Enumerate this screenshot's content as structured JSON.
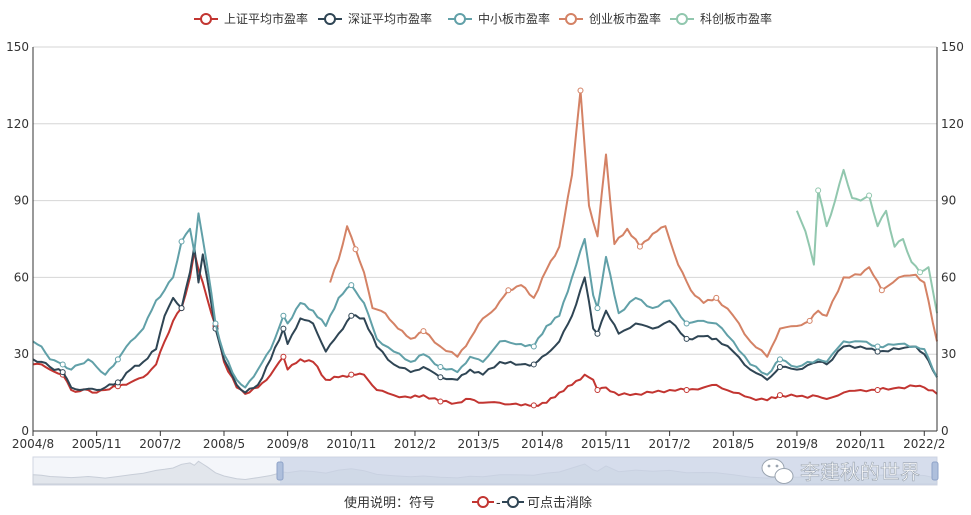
{
  "chart_data": {
    "type": "line",
    "title": "",
    "xlabel": "",
    "ylabel": "",
    "ylim": [
      0,
      150
    ],
    "y_ticks": [
      0,
      30,
      60,
      90,
      120,
      150
    ],
    "x_ticks": [
      "2004/8",
      "2005/11",
      "2007/2",
      "2008/5",
      "2009/8",
      "2010/11",
      "2012/2",
      "2013/5",
      "2014/8",
      "2015/11",
      "2017/2",
      "2018/5",
      "2019/8",
      "2020/11",
      "2022/2"
    ],
    "x_range": [
      "2004-08",
      "2022-05"
    ],
    "grid": "horizontal",
    "legend_position": "top-center",
    "series": [
      {
        "name": "上证平均市盈率",
        "color": "#c23531",
        "points": [
          [
            "2004-08",
            26
          ],
          [
            "2004-10",
            26
          ],
          [
            "2004-12",
            24
          ],
          [
            "2005-03",
            22
          ],
          [
            "2005-05",
            16
          ],
          [
            "2005-07",
            15.5
          ],
          [
            "2005-09",
            16
          ],
          [
            "2005-11",
            15
          ],
          [
            "2006-01",
            16
          ],
          [
            "2006-04",
            17.5
          ],
          [
            "2006-07",
            19
          ],
          [
            "2006-10",
            21
          ],
          [
            "2007-01",
            26
          ],
          [
            "2007-03",
            35
          ],
          [
            "2007-05",
            43
          ],
          [
            "2007-07",
            48
          ],
          [
            "2007-09",
            60
          ],
          [
            "2007-10",
            70
          ],
          [
            "2007-11",
            63
          ],
          [
            "2007-12",
            58
          ],
          [
            "2008-01",
            52
          ],
          [
            "2008-03",
            41
          ],
          [
            "2008-05",
            27
          ],
          [
            "2008-08",
            17
          ],
          [
            "2008-10",
            14.5
          ],
          [
            "2009-01",
            17
          ],
          [
            "2009-04",
            22
          ],
          [
            "2009-07",
            29
          ],
          [
            "2009-08",
            24
          ],
          [
            "2009-11",
            28
          ],
          [
            "2010-02",
            27
          ],
          [
            "2010-05",
            20
          ],
          [
            "2010-08",
            21
          ],
          [
            "2010-11",
            22
          ],
          [
            "2011-02",
            22
          ],
          [
            "2011-05",
            16
          ],
          [
            "2011-09",
            14
          ],
          [
            "2012-01",
            13
          ],
          [
            "2012-04",
            14
          ],
          [
            "2012-08",
            11.5
          ],
          [
            "2012-12",
            11
          ],
          [
            "2013-03",
            12.5
          ],
          [
            "2013-06",
            11
          ],
          [
            "2013-10",
            11
          ],
          [
            "2014-03",
            10
          ],
          [
            "2014-06",
            10
          ],
          [
            "2014-09",
            11
          ],
          [
            "2014-12",
            15
          ],
          [
            "2015-03",
            18
          ],
          [
            "2015-06",
            22
          ],
          [
            "2015-08",
            20
          ],
          [
            "2015-09",
            16
          ],
          [
            "2015-11",
            17
          ],
          [
            "2016-02",
            14
          ],
          [
            "2016-06",
            14.5
          ],
          [
            "2016-10",
            15
          ],
          [
            "2017-02",
            16
          ],
          [
            "2017-06",
            16
          ],
          [
            "2017-10",
            17
          ],
          [
            "2018-01",
            18
          ],
          [
            "2018-05",
            15
          ],
          [
            "2018-09",
            13
          ],
          [
            "2019-01",
            12
          ],
          [
            "2019-04",
            14
          ],
          [
            "2019-08",
            13.5
          ],
          [
            "2020-01",
            13.5
          ],
          [
            "2020-03",
            12.5
          ],
          [
            "2020-07",
            15
          ],
          [
            "2020-11",
            16
          ],
          [
            "2021-03",
            16
          ],
          [
            "2021-08",
            17
          ],
          [
            "2021-12",
            17.5
          ],
          [
            "2022-02",
            17
          ],
          [
            "2022-05",
            14.5
          ]
        ]
      },
      {
        "name": "深证平均市盈率",
        "color": "#2f4554",
        "points": [
          [
            "2004-08",
            28
          ],
          [
            "2004-10",
            27
          ],
          [
            "2004-12",
            25
          ],
          [
            "2005-03",
            23
          ],
          [
            "2005-05",
            17
          ],
          [
            "2005-07",
            16
          ],
          [
            "2005-09",
            16.5
          ],
          [
            "2005-11",
            16
          ],
          [
            "2006-01",
            17
          ],
          [
            "2006-04",
            19
          ],
          [
            "2006-07",
            24
          ],
          [
            "2006-10",
            27
          ],
          [
            "2007-01",
            32
          ],
          [
            "2007-03",
            45
          ],
          [
            "2007-05",
            52
          ],
          [
            "2007-07",
            48
          ],
          [
            "2007-09",
            62
          ],
          [
            "2007-10",
            72
          ],
          [
            "2007-11",
            58
          ],
          [
            "2007-12",
            69
          ],
          [
            "2008-01",
            60
          ],
          [
            "2008-03",
            40
          ],
          [
            "2008-05",
            28
          ],
          [
            "2008-08",
            18
          ],
          [
            "2008-10",
            15
          ],
          [
            "2009-01",
            18
          ],
          [
            "2009-04",
            28
          ],
          [
            "2009-07",
            40
          ],
          [
            "2009-08",
            34
          ],
          [
            "2009-11",
            44
          ],
          [
            "2010-02",
            42
          ],
          [
            "2010-05",
            31
          ],
          [
            "2010-08",
            38
          ],
          [
            "2010-11",
            45
          ],
          [
            "2011-02",
            44
          ],
          [
            "2011-05",
            33
          ],
          [
            "2011-09",
            26
          ],
          [
            "2012-01",
            23
          ],
          [
            "2012-04",
            25
          ],
          [
            "2012-08",
            21
          ],
          [
            "2012-12",
            20
          ],
          [
            "2013-03",
            24
          ],
          [
            "2013-06",
            22
          ],
          [
            "2013-10",
            27
          ],
          [
            "2014-03",
            26
          ],
          [
            "2014-06",
            26
          ],
          [
            "2014-09",
            30
          ],
          [
            "2014-12",
            35
          ],
          [
            "2015-03",
            45
          ],
          [
            "2015-06",
            60
          ],
          [
            "2015-08",
            40
          ],
          [
            "2015-09",
            38
          ],
          [
            "2015-11",
            47
          ],
          [
            "2016-02",
            38
          ],
          [
            "2016-06",
            42
          ],
          [
            "2016-10",
            40
          ],
          [
            "2017-02",
            43
          ],
          [
            "2017-06",
            36
          ],
          [
            "2017-10",
            37
          ],
          [
            "2018-01",
            36
          ],
          [
            "2018-05",
            31
          ],
          [
            "2018-09",
            24
          ],
          [
            "2019-01",
            20
          ],
          [
            "2019-04",
            25
          ],
          [
            "2019-08",
            24
          ],
          [
            "2020-01",
            27
          ],
          [
            "2020-03",
            26
          ],
          [
            "2020-07",
            33
          ],
          [
            "2020-11",
            33
          ],
          [
            "2021-03",
            31
          ],
          [
            "2021-08",
            32
          ],
          [
            "2021-12",
            33
          ],
          [
            "2022-02",
            30
          ],
          [
            "2022-05",
            21
          ]
        ]
      },
      {
        "name": "中小板市盈率",
        "color": "#61a0a8",
        "points": [
          [
            "2004-08",
            35
          ],
          [
            "2004-10",
            33
          ],
          [
            "2004-12",
            28
          ],
          [
            "2005-03",
            26
          ],
          [
            "2005-05",
            24
          ],
          [
            "2005-07",
            26
          ],
          [
            "2005-09",
            28
          ],
          [
            "2005-11",
            25
          ],
          [
            "2006-01",
            22
          ],
          [
            "2006-04",
            28
          ],
          [
            "2006-07",
            35
          ],
          [
            "2006-10",
            40
          ],
          [
            "2007-01",
            51
          ],
          [
            "2007-03",
            55
          ],
          [
            "2007-05",
            60
          ],
          [
            "2007-07",
            74
          ],
          [
            "2007-09",
            79
          ],
          [
            "2007-10",
            70
          ],
          [
            "2007-11",
            85
          ],
          [
            "2007-12",
            75
          ],
          [
            "2008-01",
            65
          ],
          [
            "2008-03",
            42
          ],
          [
            "2008-05",
            30
          ],
          [
            "2008-08",
            20
          ],
          [
            "2008-10",
            17
          ],
          [
            "2009-01",
            24
          ],
          [
            "2009-04",
            32
          ],
          [
            "2009-07",
            45
          ],
          [
            "2009-08",
            42
          ],
          [
            "2009-11",
            50
          ],
          [
            "2010-02",
            47
          ],
          [
            "2010-05",
            41
          ],
          [
            "2010-08",
            52
          ],
          [
            "2010-11",
            57
          ],
          [
            "2011-02",
            50
          ],
          [
            "2011-05",
            36
          ],
          [
            "2011-09",
            31
          ],
          [
            "2012-01",
            27
          ],
          [
            "2012-04",
            30
          ],
          [
            "2012-08",
            25
          ],
          [
            "2012-12",
            23
          ],
          [
            "2013-03",
            29
          ],
          [
            "2013-06",
            27
          ],
          [
            "2013-10",
            35
          ],
          [
            "2014-03",
            34
          ],
          [
            "2014-06",
            33
          ],
          [
            "2014-09",
            41
          ],
          [
            "2014-12",
            45
          ],
          [
            "2015-03",
            60
          ],
          [
            "2015-06",
            75
          ],
          [
            "2015-08",
            53
          ],
          [
            "2015-09",
            48
          ],
          [
            "2015-11",
            68
          ],
          [
            "2016-02",
            46
          ],
          [
            "2016-06",
            52
          ],
          [
            "2016-10",
            48
          ],
          [
            "2017-02",
            51
          ],
          [
            "2017-06",
            42
          ],
          [
            "2017-10",
            43
          ],
          [
            "2018-01",
            42
          ],
          [
            "2018-05",
            35
          ],
          [
            "2018-09",
            26
          ],
          [
            "2019-01",
            22
          ],
          [
            "2019-04",
            28
          ],
          [
            "2019-08",
            25
          ],
          [
            "2020-01",
            28
          ],
          [
            "2020-03",
            27
          ],
          [
            "2020-07",
            35
          ],
          [
            "2020-11",
            35
          ],
          [
            "2021-03",
            33
          ],
          [
            "2021-08",
            34
          ],
          [
            "2021-12",
            33
          ],
          [
            "2022-02",
            32
          ],
          [
            "2022-05",
            21
          ]
        ]
      },
      {
        "name": "创业板市盈率",
        "color": "#d48265",
        "points": [
          [
            "2010-06",
            58
          ],
          [
            "2010-08",
            67
          ],
          [
            "2010-10",
            80
          ],
          [
            "2010-12",
            71
          ],
          [
            "2011-02",
            62
          ],
          [
            "2011-04",
            48
          ],
          [
            "2011-07",
            46
          ],
          [
            "2011-10",
            40
          ],
          [
            "2012-01",
            36
          ],
          [
            "2012-04",
            39
          ],
          [
            "2012-08",
            33
          ],
          [
            "2012-12",
            29
          ],
          [
            "2013-03",
            36
          ],
          [
            "2013-06",
            44
          ],
          [
            "2013-09",
            48
          ],
          [
            "2013-12",
            55
          ],
          [
            "2014-03",
            57
          ],
          [
            "2014-06",
            52
          ],
          [
            "2014-09",
            63
          ],
          [
            "2014-12",
            72
          ],
          [
            "2015-03",
            100
          ],
          [
            "2015-05",
            133
          ],
          [
            "2015-07",
            88
          ],
          [
            "2015-09",
            76
          ],
          [
            "2015-11",
            108
          ],
          [
            "2016-01",
            73
          ],
          [
            "2016-04",
            79
          ],
          [
            "2016-07",
            72
          ],
          [
            "2016-10",
            77
          ],
          [
            "2017-01",
            80
          ],
          [
            "2017-04",
            65
          ],
          [
            "2017-07",
            55
          ],
          [
            "2017-10",
            50
          ],
          [
            "2018-01",
            52
          ],
          [
            "2018-05",
            45
          ],
          [
            "2018-09",
            35
          ],
          [
            "2019-01",
            29
          ],
          [
            "2019-04",
            40
          ],
          [
            "2019-08",
            41
          ],
          [
            "2019-11",
            43
          ],
          [
            "2020-01",
            47
          ],
          [
            "2020-03",
            45
          ],
          [
            "2020-07",
            60
          ],
          [
            "2020-11",
            61
          ],
          [
            "2021-01",
            64
          ],
          [
            "2021-04",
            55
          ],
          [
            "2021-08",
            60
          ],
          [
            "2021-12",
            61
          ],
          [
            "2022-02",
            58
          ],
          [
            "2022-05",
            35
          ]
        ]
      },
      {
        "name": "科创板市盈率",
        "color": "#91c7ae",
        "points": [
          [
            "2019-08",
            86
          ],
          [
            "2019-10",
            78
          ],
          [
            "2019-12",
            65
          ],
          [
            "2020-01",
            94
          ],
          [
            "2020-03",
            80
          ],
          [
            "2020-05",
            90
          ],
          [
            "2020-07",
            102
          ],
          [
            "2020-09",
            91
          ],
          [
            "2020-11",
            90
          ],
          [
            "2021-01",
            92
          ],
          [
            "2021-03",
            80
          ],
          [
            "2021-05",
            86
          ],
          [
            "2021-07",
            72
          ],
          [
            "2021-09",
            75
          ],
          [
            "2021-11",
            66
          ],
          [
            "2022-01",
            62
          ],
          [
            "2022-03",
            64
          ],
          [
            "2022-05",
            46
          ]
        ]
      }
    ]
  },
  "usage_note": {
    "prefix": "使用说明：符号",
    "suffix": "可点击消除"
  },
  "watermark": {
    "text": "李建秋的世界"
  }
}
